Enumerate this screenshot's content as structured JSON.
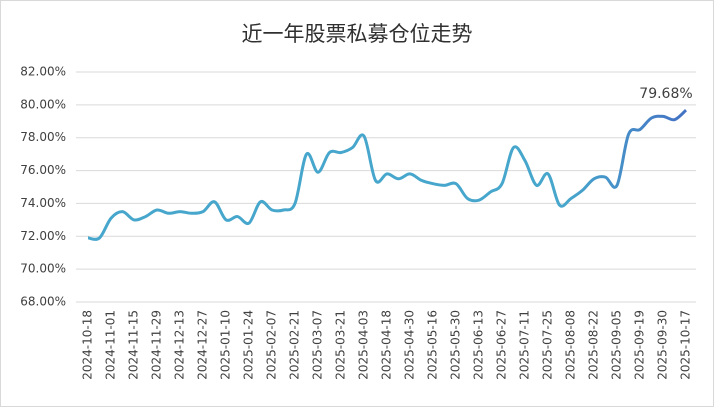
{
  "chart_data": {
    "type": "line",
    "title": "近一年股票私募仓位走势",
    "categories": [
      "2024-10-18",
      null,
      "2024-11-01",
      null,
      "2024-11-15",
      null,
      "2024-11-29",
      null,
      "2024-12-13",
      null,
      "2024-12-27",
      null,
      "2025-01-10",
      null,
      "2025-01-24",
      null,
      "2025-02-07",
      null,
      "2025-02-21",
      null,
      "2025-03-07",
      null,
      "2025-03-21",
      null,
      "2025-04-03",
      null,
      "2025-04-18",
      null,
      "2025-04-30",
      null,
      "2025-05-16",
      null,
      "2025-05-30",
      null,
      "2025-06-13",
      null,
      "2025-06-27",
      null,
      "2025-07-11",
      null,
      "2025-07-25",
      null,
      "2025-08-08",
      null,
      "2025-08-22",
      null,
      "2025-09-05",
      null,
      "2025-09-19",
      null,
      "2025-09-30",
      null,
      "2025-10-17"
    ],
    "series": [
      {
        "color": "#47a6cc",
        "values": [
          71.9,
          71.9,
          73.1,
          73.5,
          73.0,
          73.2,
          73.6,
          73.4,
          73.5,
          73.4,
          73.5,
          74.1,
          73.0,
          73.2,
          72.8,
          74.1,
          73.6,
          73.6,
          74.0,
          77.0,
          75.9,
          77.1,
          77.1,
          77.4,
          78.1,
          75.4,
          75.8,
          75.5,
          75.8,
          75.4,
          75.2,
          75.1,
          75.2,
          74.3,
          74.2,
          74.7,
          75.2,
          77.4,
          76.6,
          75.1,
          75.8,
          73.9,
          74.3,
          74.8,
          75.5,
          75.6,
          75.1,
          78.2,
          78.5,
          79.2,
          79.3,
          79.1,
          79.68
        ],
        "value_labels": [
          null,
          null,
          null,
          null,
          null,
          null,
          null,
          null,
          null,
          null,
          null,
          null,
          null,
          null,
          null,
          null,
          null,
          null,
          null,
          null,
          null,
          null,
          null,
          null,
          null,
          null,
          null,
          null,
          null,
          null,
          null,
          null,
          null,
          null,
          null,
          null,
          null,
          null,
          null,
          null,
          null,
          null,
          null,
          null,
          null,
          null,
          null,
          null,
          null,
          null,
          null,
          null,
          "79.68%"
        ]
      }
    ],
    "ylim": [
      68,
      82
    ],
    "yticks": [
      {
        "value": 68,
        "label": "68.00%"
      },
      {
        "value": 70,
        "label": "70.00%"
      },
      {
        "value": 72,
        "label": "72.00%"
      },
      {
        "value": 74,
        "label": "74.00%"
      },
      {
        "value": 76,
        "label": "76.00%"
      },
      {
        "value": 78,
        "label": "78.00%"
      },
      {
        "value": 80,
        "label": "80.00%"
      },
      {
        "value": 82,
        "label": "82.00%"
      }
    ],
    "grid": true
  }
}
